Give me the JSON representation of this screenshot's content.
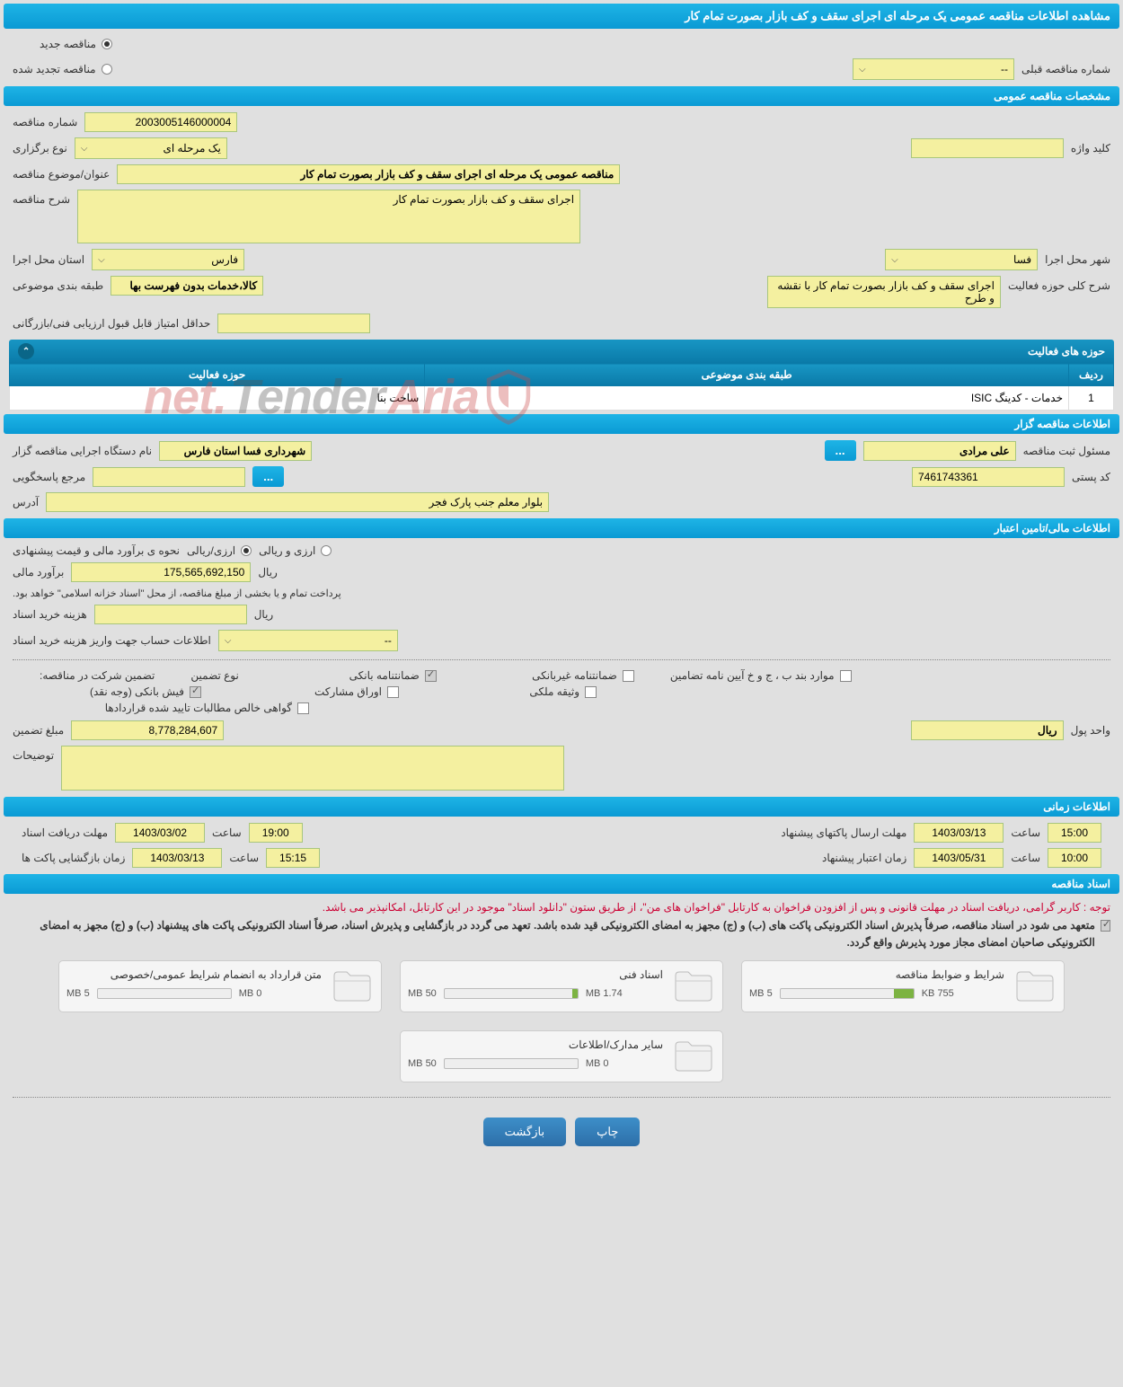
{
  "header": {
    "title": "مشاهده اطلاعات مناقصه عمومی یک مرحله ای اجرای سقف و کف بازار بصورت تمام کار"
  },
  "tender_type": {
    "new": "مناقصه جدید",
    "renewed": "مناقصه تجدید شده",
    "prev_label": "شماره مناقصه قبلی",
    "prev_value": "--"
  },
  "sections": {
    "general": "مشخصات مناقصه عمومی",
    "organizer": "اطلاعات مناقصه گزار",
    "financial": "اطلاعات مالی/تامین اعتبار",
    "timing": "اطلاعات زمانی",
    "documents": "اسناد مناقصه"
  },
  "general": {
    "tender_no_label": "شماره مناقصه",
    "tender_no": "2003005146000004",
    "type_label": "نوع برگزاری",
    "type_value": "یک مرحله ای",
    "keyword_label": "کلید واژه",
    "keyword": "",
    "subject_label": "عنوان/موضوع مناقصه",
    "subject": "مناقصه عمومی یک مرحله ای اجرای سقف و کف بازار بصورت تمام کار",
    "desc_label": "شرح مناقصه",
    "desc": "اجرای سقف و کف بازار بصورت تمام کار",
    "province_label": "استان محل اجرا",
    "province": "فارس",
    "city_label": "شهر محل اجرا",
    "city": "فسا",
    "category_label": "طبقه بندی موضوعی",
    "category": "کالا،خدمات بدون فهرست بها",
    "activity_desc_label": "شرح کلی حوزه فعالیت",
    "activity_desc": "اجرای سقف و کف بازار بصورت تمام کار با نقشه و طرح",
    "min_score_label": "حداقل امتیاز قابل قبول ارزیابی فنی/بازرگانی",
    "min_score": ""
  },
  "activity": {
    "title": "حوزه های فعالیت",
    "cols": {
      "row": "ردیف",
      "category": "طبقه بندی موضوعی",
      "field": "حوزه فعالیت"
    },
    "rows": [
      {
        "idx": "1",
        "cat": "خدمات - کدینگ ISIC",
        "field": "ساخت بنا"
      }
    ]
  },
  "organizer": {
    "exec_label": "نام دستگاه اجرایی مناقصه گزار",
    "exec": "شهرداری فسا استان فارس",
    "reg_officer_label": "مسئول ثبت مناقصه",
    "reg_officer": "علی مرادی",
    "response_label": "مرجع پاسخگویی",
    "response": "",
    "postal_label": "کد پستی",
    "postal": "7461743361",
    "address_label": "آدرس",
    "address": "بلوار معلم جنب پارک فجر"
  },
  "financial": {
    "estimate_method_label": "نحوه ی برآورد مالی و قیمت پیشنهادی",
    "opt_rial": "ارزی/ریالی",
    "opt_forex": "ارزی و ریالی",
    "estimate_label": "برآورد مالی",
    "estimate": "175,565,692,150",
    "rial": "ریال",
    "note": "پرداخت تمام و یا بخشی از مبلغ مناقصه، از محل \"اسناد خزانه اسلامی\" خواهد بود.",
    "doc_cost_label": "هزینه خرید اسناد",
    "doc_cost": "",
    "deposit_info_label": "اطلاعات حساب جهت واریز هزینه خرید اسناد",
    "deposit_info": "--",
    "guarantee_label": "تضمین شرکت در مناقصه:",
    "guarantee_type": "نوع تضمین",
    "g_bank": "ضمانتنامه بانکی",
    "g_nonbank": "ضمانتنامه غیربانکی",
    "g_bond": "موارد بند ب ، ج و خ آیین نامه تضامین",
    "g_cash": "فیش بانکی (وجه نقد)",
    "g_participation": "اوراق مشارکت",
    "g_property": "وثیقه ملکی",
    "g_certified": "گواهی خالص مطالبات تایید شده قراردادها",
    "amount_label": "مبلغ تضمین",
    "amount": "8,778,284,607",
    "unit_label": "واحد پول",
    "unit": "ریال",
    "notes_label": "توضیحات"
  },
  "timing": {
    "deadline_docs_label": "مهلت دریافت اسناد",
    "deadline_docs_date": "1403/03/02",
    "time_label": "ساعت",
    "deadline_docs_time": "19:00",
    "send_packets_label": "مهلت ارسال پاکتهای پیشنهاد",
    "send_packets_date": "1403/03/13",
    "send_packets_time": "15:00",
    "open_packets_label": "زمان بازگشایی پاکت ها",
    "open_packets_date": "1403/03/13",
    "open_packets_time": "15:15",
    "validity_label": "زمان اعتبار پیشنهاد",
    "validity_date": "1403/05/31",
    "validity_time": "10:00"
  },
  "docs": {
    "note_red": "توجه : کاربر گرامی، دریافت اسناد در مهلت قانونی و پس از افزودن فراخوان به کارتابل \"فراخوان های من\"، از طریق ستون \"دانلود اسناد\" موجود در این کارتابل، امکانپذیر می باشد.",
    "note_bold": "متعهد می شود در اسناد مناقصه، صرفاً پذیرش اسناد الکترونیکی پاکت های (ب) و (ج) مجهز به امضای الکترونیکی قید شده باشد. تعهد می گردد در بازگشایی و پذیرش اسناد، صرفاً اسناد الکترونیکی پاکت های پیشنهاد (ب) و (ج) مجهز به امضای الکترونیکی صاحبان امضای مجاز مورد پذیرش واقع گردد.",
    "boxes": [
      {
        "title": "شرایط و ضوابط مناقصه",
        "used": "755 KB",
        "total": "5 MB",
        "fill_pct": 15
      },
      {
        "title": "اسناد فنی",
        "used": "1.74 MB",
        "total": "50 MB",
        "fill_pct": 4
      },
      {
        "title": "متن قرارداد به انضمام شرایط عمومی/خصوصی",
        "used": "0 MB",
        "total": "5 MB",
        "fill_pct": 0
      },
      {
        "title": "سایر مدارک/اطلاعات",
        "used": "0 MB",
        "total": "50 MB",
        "fill_pct": 0
      }
    ]
  },
  "footer": {
    "print": "چاپ",
    "back": "بازگشت"
  },
  "watermark": {
    "brand1": "Aria",
    "brand2": "Tender",
    "brand3": ".net"
  }
}
